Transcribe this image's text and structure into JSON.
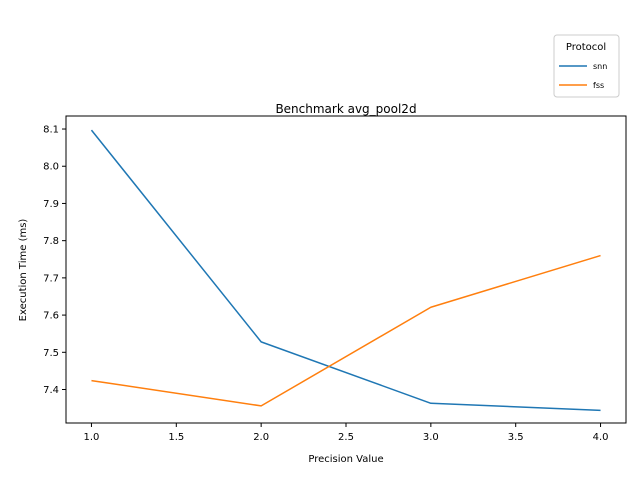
{
  "chart_data": {
    "type": "line",
    "title": "Benchmark avg_pool2d",
    "xlabel": "Precision Value",
    "ylabel": "Execution Time (ms)",
    "x": [
      1.0,
      2.0,
      3.0,
      4.0
    ],
    "xlim": [
      0.85,
      4.15
    ],
    "ylim": [
      7.31,
      8.135
    ],
    "xticks": [
      1.0,
      1.5,
      2.0,
      2.5,
      3.0,
      3.5,
      4.0
    ],
    "xtick_labels": [
      "1.0",
      "1.5",
      "2.0",
      "2.5",
      "3.0",
      "3.5",
      "4.0"
    ],
    "yticks": [
      7.4,
      7.5,
      7.6,
      7.7,
      7.8,
      7.9,
      8.0,
      8.1
    ],
    "ytick_labels": [
      "7.4",
      "7.5",
      "7.6",
      "7.7",
      "7.8",
      "7.9",
      "8.0",
      "8.1"
    ],
    "grid": false,
    "legend": {
      "title": "Protocol",
      "placement": "upper right, outside above plot"
    },
    "series": [
      {
        "name": "snn",
        "color": "#1f77b4",
        "values": [
          8.097,
          7.528,
          7.363,
          7.344
        ]
      },
      {
        "name": "fss",
        "color": "#ff7f0e",
        "values": [
          7.424,
          7.356,
          7.621,
          7.76
        ]
      }
    ]
  }
}
